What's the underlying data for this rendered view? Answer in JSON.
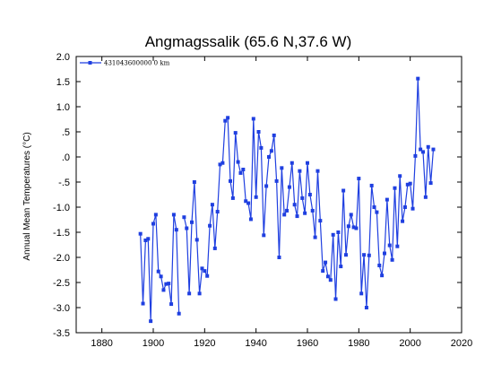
{
  "chart_data": {
    "type": "line",
    "title": "Angmagssalik (65.6 N,37.6 W)",
    "xlabel": "",
    "ylabel": "Annual Mean Temperatures (°C)",
    "xlim": [
      1870,
      2020
    ],
    "ylim": [
      -3.5,
      2.0
    ],
    "xticks": [
      1880,
      1900,
      1920,
      1940,
      1960,
      1980,
      2000,
      2020
    ],
    "yticks": [
      {
        "v": 2.0,
        "label": "2.0"
      },
      {
        "v": 1.5,
        "label": "1.5"
      },
      {
        "v": 1.0,
        "label": "1.0"
      },
      {
        "v": 0.5,
        "label": ".5"
      },
      {
        "v": 0.0,
        "label": ".0"
      },
      {
        "v": -0.5,
        "label": "-.5"
      },
      {
        "v": -1.0,
        "label": "-1.0"
      },
      {
        "v": -1.5,
        "label": "-1.5"
      },
      {
        "v": -2.0,
        "label": "-2.0"
      },
      {
        "v": -2.5,
        "label": "-2.5"
      },
      {
        "v": -3.0,
        "label": "-3.0"
      },
      {
        "v": -3.5,
        "label": "-3.5"
      }
    ],
    "grid": false,
    "legend_position": "top-left",
    "series": [
      {
        "name": "431043600000  0 km",
        "color": "#1f3fe0",
        "x": [
          1895,
          1896,
          1897,
          1898,
          1899,
          1900,
          1901,
          1902,
          1903,
          1904,
          1905,
          1906,
          1907,
          1908,
          1909,
          1910,
          1911,
          1912,
          1913,
          1914,
          1915,
          1916,
          1917,
          1918,
          1919,
          1920,
          1921,
          1922,
          1923,
          1924,
          1925,
          1926,
          1927,
          1928,
          1929,
          1930,
          1931,
          1932,
          1933,
          1934,
          1935,
          1936,
          1937,
          1938,
          1939,
          1940,
          1941,
          1942,
          1943,
          1944,
          1945,
          1946,
          1947,
          1948,
          1949,
          1950,
          1951,
          1952,
          1953,
          1954,
          1955,
          1956,
          1957,
          1958,
          1959,
          1960,
          1961,
          1962,
          1963,
          1964,
          1965,
          1966,
          1967,
          1968,
          1969,
          1970,
          1971,
          1972,
          1973,
          1974,
          1975,
          1976,
          1977,
          1978,
          1979,
          1980,
          1981,
          1982,
          1983,
          1984,
          1985,
          1986,
          1987,
          1988,
          1989,
          1990,
          1991,
          1992,
          1993,
          1994,
          1995,
          1996,
          1997,
          1998,
          1999,
          2000,
          2001,
          2002,
          2003,
          2004,
          2005,
          2006,
          2007,
          2008,
          2009
        ],
        "y": [
          -1.53,
          -2.92,
          -1.66,
          -1.63,
          -3.27,
          -1.33,
          -1.15,
          -2.28,
          -2.38,
          -2.65,
          -2.53,
          -2.52,
          -2.93,
          -1.15,
          -1.45,
          -3.12,
          null,
          -1.2,
          -1.42,
          -2.72,
          -1.3,
          -0.5,
          -1.65,
          -2.72,
          -2.22,
          -2.27,
          -2.37,
          -1.37,
          -0.95,
          -1.82,
          -1.09,
          -0.15,
          -0.12,
          0.72,
          0.78,
          -0.48,
          -0.82,
          0.48,
          -0.1,
          -0.32,
          -0.25,
          -0.88,
          -0.92,
          -1.24,
          0.76,
          -0.8,
          0.5,
          0.18,
          -1.56,
          -0.58,
          0.0,
          0.12,
          0.43,
          -0.48,
          -2.0,
          -0.22,
          -1.15,
          -1.07,
          -0.6,
          -0.12,
          -0.95,
          -1.18,
          -0.28,
          -0.82,
          -1.12,
          -0.12,
          -0.75,
          -1.07,
          -1.6,
          -0.28,
          -1.27,
          -2.27,
          -2.1,
          -2.38,
          -2.45,
          -1.55,
          -2.83,
          -1.5,
          -2.18,
          -0.67,
          -1.95,
          -1.38,
          -1.15,
          -1.4,
          -1.42,
          -0.43,
          -2.72,
          -1.95,
          -3.0,
          -1.96,
          -0.57,
          -1.0,
          -1.1,
          -2.16,
          -2.36,
          -1.92,
          -0.85,
          -1.76,
          -2.05,
          -0.62,
          -1.78,
          -0.38,
          -1.28,
          -1.0,
          -0.55,
          -0.53,
          -1.03,
          0.02,
          1.56,
          0.15,
          0.1,
          -0.8,
          0.2,
          -0.52,
          0.15
        ]
      }
    ]
  }
}
